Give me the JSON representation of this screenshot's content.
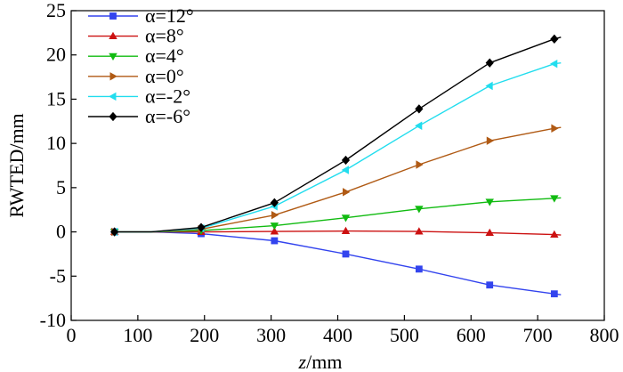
{
  "chart_data": {
    "type": "line",
    "xlabel_var": "z",
    "xlabel_unit": "/mm",
    "ylabel": "RWTED/mm",
    "xlim": [
      0,
      800
    ],
    "ylim": [
      -10,
      25
    ],
    "xticks": [
      0,
      100,
      200,
      300,
      400,
      500,
      600,
      700,
      800
    ],
    "yticks": [
      -10,
      -5,
      0,
      5,
      10,
      15,
      20,
      25
    ],
    "grid": false,
    "legend_position": "top-left",
    "series": [
      {
        "name": "α=12°",
        "color": "#3344ee",
        "marker": "square",
        "x": [
          65,
          120,
          195,
          305,
          412,
          522,
          628,
          725,
          735
        ],
        "y": [
          0,
          0,
          -0.2,
          -1.0,
          -2.5,
          -4.2,
          -6.0,
          -7.0,
          -7.1
        ],
        "marker_x": [
          65,
          195,
          305,
          412,
          522,
          628,
          725
        ],
        "marker_y": [
          0,
          -0.2,
          -1.0,
          -2.5,
          -4.2,
          -6.0,
          -7.0
        ]
      },
      {
        "name": "α=8°",
        "color": "#cc1111",
        "marker": "triangle-up",
        "x": [
          65,
          120,
          195,
          305,
          412,
          522,
          628,
          725,
          735
        ],
        "y": [
          0,
          0,
          0,
          0.05,
          0.1,
          0.05,
          -0.1,
          -0.3,
          -0.35
        ],
        "marker_x": [
          65,
          195,
          305,
          412,
          522,
          628,
          725
        ],
        "marker_y": [
          0,
          0,
          0.05,
          0.1,
          0.05,
          -0.1,
          -0.3
        ]
      },
      {
        "name": "α=4°",
        "color": "#11bb11",
        "marker": "triangle-down",
        "x": [
          65,
          120,
          195,
          305,
          412,
          522,
          628,
          725,
          735
        ],
        "y": [
          0,
          0,
          0.15,
          0.7,
          1.6,
          2.6,
          3.4,
          3.8,
          3.85
        ],
        "marker_x": [
          65,
          195,
          305,
          412,
          522,
          628,
          725
        ],
        "marker_y": [
          0,
          0.15,
          0.7,
          1.6,
          2.6,
          3.4,
          3.8
        ]
      },
      {
        "name": "α=0°",
        "color": "#b05a14",
        "marker": "triangle-right",
        "x": [
          65,
          120,
          195,
          305,
          412,
          522,
          628,
          725,
          735
        ],
        "y": [
          0,
          0,
          0.3,
          1.9,
          4.5,
          7.6,
          10.3,
          11.7,
          11.8
        ],
        "marker_x": [
          65,
          195,
          305,
          412,
          522,
          628,
          725
        ],
        "marker_y": [
          0,
          0.3,
          1.9,
          4.5,
          7.6,
          10.3,
          11.7
        ]
      },
      {
        "name": "α=-2°",
        "color": "#22ddee",
        "marker": "triangle-left",
        "x": [
          65,
          120,
          195,
          305,
          412,
          522,
          628,
          725,
          735
        ],
        "y": [
          0,
          0,
          0.4,
          2.9,
          7.0,
          12.0,
          16.5,
          19.0,
          19.1
        ],
        "marker_x": [
          65,
          195,
          305,
          412,
          522,
          628,
          725
        ],
        "marker_y": [
          0,
          0.4,
          2.9,
          7.0,
          12.0,
          16.5,
          19.0
        ]
      },
      {
        "name": "α=-6°",
        "color": "#000000",
        "marker": "diamond",
        "x": [
          65,
          120,
          195,
          305,
          412,
          522,
          628,
          725,
          735
        ],
        "y": [
          0,
          0,
          0.5,
          3.3,
          8.1,
          13.9,
          19.1,
          21.8,
          22.0
        ],
        "marker_x": [
          65,
          195,
          305,
          412,
          522,
          628,
          725
        ],
        "marker_y": [
          0,
          0.5,
          3.3,
          8.1,
          13.9,
          19.1,
          21.8
        ]
      }
    ]
  }
}
